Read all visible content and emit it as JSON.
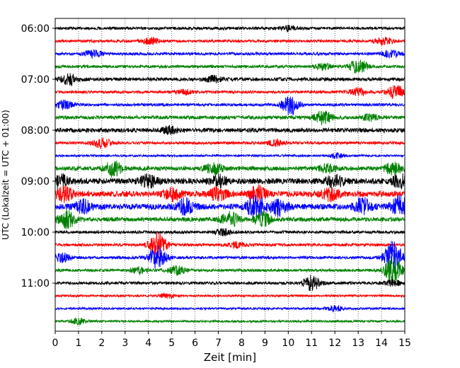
{
  "chart_data": {
    "type": "line",
    "title": "",
    "xlabel": "Zeit  [min]",
    "ylabel": "UTC (Lokalzeit = UTC + 01:00)",
    "xlim": [
      0,
      15
    ],
    "x_ticks": [
      0,
      1,
      2,
      3,
      4,
      5,
      6,
      7,
      8,
      9,
      10,
      11,
      12,
      13,
      14,
      15
    ],
    "y_ticks": [
      "06:00",
      "07:00",
      "08:00",
      "09:00",
      "10:00",
      "11:00"
    ],
    "grid": "vertical dotted",
    "traces_per_hour": 4,
    "colors": [
      "#000000",
      "#ff0000",
      "#0000ff",
      "#008000"
    ],
    "traces": [
      {
        "start": "06:00",
        "color": "#000000",
        "amplitude": 2,
        "events": [
          [
            10.0,
            3
          ]
        ]
      },
      {
        "start": "06:15",
        "color": "#ff0000",
        "amplitude": 2,
        "events": [
          [
            4.1,
            4
          ],
          [
            14.1,
            5
          ]
        ]
      },
      {
        "start": "06:30",
        "color": "#0000ff",
        "amplitude": 2,
        "events": [
          [
            1.6,
            5
          ],
          [
            14.4,
            5
          ]
        ]
      },
      {
        "start": "06:45",
        "color": "#008000",
        "amplitude": 2,
        "events": [
          [
            13.0,
            10
          ],
          [
            11.5,
            4
          ]
        ]
      },
      {
        "start": "07:00",
        "color": "#000000",
        "amplitude": 2.5,
        "events": [
          [
            0.6,
            7
          ],
          [
            6.8,
            4
          ]
        ]
      },
      {
        "start": "07:15",
        "color": "#ff0000",
        "amplitude": 2,
        "events": [
          [
            5.5,
            3
          ],
          [
            13.0,
            5
          ],
          [
            14.6,
            10
          ]
        ]
      },
      {
        "start": "07:30",
        "color": "#0000ff",
        "amplitude": 2,
        "events": [
          [
            0.4,
            6
          ],
          [
            10.1,
            14
          ]
        ]
      },
      {
        "start": "07:45",
        "color": "#008000",
        "amplitude": 2.5,
        "events": [
          [
            11.5,
            9
          ],
          [
            13.5,
            4
          ]
        ]
      },
      {
        "start": "08:00",
        "color": "#000000",
        "amplitude": 3,
        "events": [
          [
            4.9,
            4
          ]
        ]
      },
      {
        "start": "08:15",
        "color": "#ff0000",
        "amplitude": 2,
        "events": [
          [
            2.0,
            7
          ],
          [
            9.5,
            4
          ]
        ]
      },
      {
        "start": "08:30",
        "color": "#0000ff",
        "amplitude": 1.5,
        "events": [
          [
            12.1,
            3
          ]
        ]
      },
      {
        "start": "08:45",
        "color": "#008000",
        "amplitude": 3,
        "events": [
          [
            2.5,
            10
          ],
          [
            6.8,
            7
          ],
          [
            11.7,
            6
          ],
          [
            14.5,
            8
          ]
        ]
      },
      {
        "start": "09:00",
        "color": "#000000",
        "amplitude": 4,
        "events": [
          [
            0.2,
            9
          ],
          [
            4.0,
            8
          ],
          [
            7.0,
            7
          ],
          [
            12.0,
            8
          ],
          [
            14.8,
            8
          ]
        ]
      },
      {
        "start": "09:15",
        "color": "#ff0000",
        "amplitude": 4,
        "events": [
          [
            0.4,
            10
          ],
          [
            5.0,
            8
          ],
          [
            7.0,
            9
          ],
          [
            8.7,
            10
          ],
          [
            11.8,
            8
          ]
        ]
      },
      {
        "start": "09:30",
        "color": "#0000ff",
        "amplitude": 4,
        "events": [
          [
            1.2,
            8
          ],
          [
            5.6,
            10
          ],
          [
            8.6,
            16
          ],
          [
            9.6,
            12
          ],
          [
            13.2,
            11
          ],
          [
            14.8,
            13
          ]
        ]
      },
      {
        "start": "09:45",
        "color": "#008000",
        "amplitude": 3,
        "events": [
          [
            0.5,
            12
          ],
          [
            7.5,
            10
          ],
          [
            8.9,
            9
          ]
        ]
      },
      {
        "start": "10:00",
        "color": "#000000",
        "amplitude": 2,
        "events": [
          [
            7.2,
            4
          ]
        ]
      },
      {
        "start": "10:15",
        "color": "#ff0000",
        "amplitude": 2,
        "events": [
          [
            4.4,
            18
          ],
          [
            7.8,
            4
          ]
        ]
      },
      {
        "start": "10:30",
        "color": "#0000ff",
        "amplitude": 2,
        "events": [
          [
            0.3,
            6
          ],
          [
            4.4,
            16
          ],
          [
            14.5,
            24
          ]
        ]
      },
      {
        "start": "10:45",
        "color": "#008000",
        "amplitude": 2,
        "events": [
          [
            5.2,
            6
          ],
          [
            3.6,
            4
          ],
          [
            14.5,
            20
          ]
        ]
      },
      {
        "start": "11:00",
        "color": "#000000",
        "amplitude": 2,
        "events": [
          [
            11.0,
            10
          ],
          [
            14.5,
            4
          ]
        ]
      },
      {
        "start": "11:15",
        "color": "#ff0000",
        "amplitude": 1.5,
        "events": [
          [
            4.8,
            3
          ]
        ]
      },
      {
        "start": "11:30",
        "color": "#0000ff",
        "amplitude": 1.5,
        "events": [
          [
            12.0,
            4
          ]
        ]
      },
      {
        "start": "11:45",
        "color": "#008000",
        "amplitude": 1.5,
        "events": [
          [
            1.0,
            4
          ]
        ]
      }
    ]
  }
}
